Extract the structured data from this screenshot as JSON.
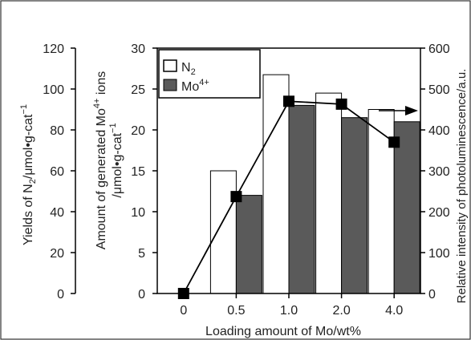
{
  "chart_data": {
    "type": "bar",
    "xlabel": "Loading amount of Mo/wt%",
    "categories": [
      "0",
      "0.5",
      "1.0",
      "2.0",
      "4.0"
    ],
    "y_left_outer": {
      "label_main": "Yields of N",
      "label_sub": "2",
      "label_rest": "/μmol•g-cat",
      "label_sup": "−1",
      "ticks": [
        "0",
        "20",
        "40",
        "60",
        "80",
        "100",
        "120"
      ],
      "ylim": [
        0,
        120
      ]
    },
    "y_left_inner": {
      "label_line1_a": "Amount of generated Mo",
      "label_line1_sup": "4+",
      "label_line1_b": " ions",
      "label_line2_a": "/μmol•g-cat",
      "label_line2_sup": "−1",
      "ticks": [
        "0",
        "5",
        "10",
        "15",
        "20",
        "25",
        "30"
      ],
      "ylim": [
        0,
        30
      ]
    },
    "y_right": {
      "label": "Relative intensity of photoluminescence/a.u.",
      "ticks": [
        "0",
        "100",
        "200",
        "300",
        "400",
        "500",
        "600"
      ],
      "ylim": [
        0,
        600
      ]
    },
    "series": [
      {
        "name": "N2",
        "axis": "y_left_outer",
        "kind": "bar",
        "color": "#ffffff",
        "values": [
          0,
          60,
          107,
          98,
          90
        ]
      },
      {
        "name": "Mo4+",
        "axis": "y_left_inner",
        "kind": "bar",
        "color": "#5a5a5a",
        "values": [
          0,
          12,
          23,
          21.5,
          21
        ]
      },
      {
        "axis": "y_right",
        "kind": "line",
        "marker": "square",
        "color": "#000000",
        "values": [
          0,
          237,
          470,
          463,
          370
        ]
      }
    ],
    "legend": {
      "position": "top-left",
      "items": [
        {
          "text": "N",
          "sub": "2",
          "fill": "#ffffff"
        },
        {
          "text": "Mo",
          "sup": "4+",
          "fill": "#5a5a5a"
        }
      ]
    },
    "annotation": "arrow pointing right"
  }
}
